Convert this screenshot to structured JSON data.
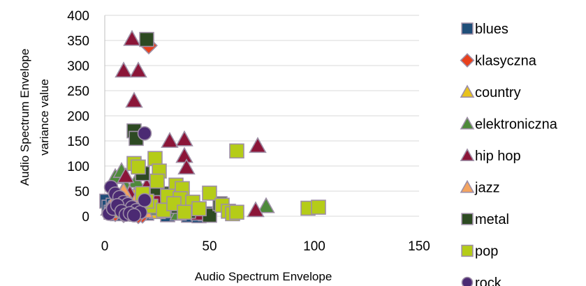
{
  "chart_data": {
    "type": "scatter",
    "title": "",
    "xlabel": "Audio Spectrum Envelope",
    "ylabel_lines": [
      "Audio Spectrum Envelope",
      "variance value"
    ],
    "xlim": [
      0,
      150
    ],
    "ylim": [
      0,
      400
    ],
    "x_ticks": [
      "0",
      "50",
      "100",
      "150"
    ],
    "y_ticks": [
      "0",
      "50",
      "100",
      "150",
      "200",
      "250",
      "300",
      "350",
      "400"
    ],
    "grid": "horizontal",
    "legend_position": "right",
    "series": [
      {
        "name": "blues",
        "marker": "square",
        "color": "#1F4E79",
        "points": [
          [
            1,
            30
          ],
          [
            2,
            18
          ],
          [
            3,
            8
          ],
          [
            4,
            22
          ],
          [
            5,
            12
          ],
          [
            6,
            5
          ],
          [
            8,
            14
          ],
          [
            10,
            20
          ],
          [
            12,
            9
          ],
          [
            15,
            4
          ],
          [
            20,
            6
          ],
          [
            25,
            10
          ],
          [
            30,
            3
          ],
          [
            35,
            8
          ],
          [
            40,
            2
          ],
          [
            45,
            1
          ],
          [
            48,
            5
          ]
        ]
      },
      {
        "name": "klasyczna",
        "marker": "diamond",
        "color": "#E8401C",
        "points": [
          [
            3,
            10
          ],
          [
            5,
            6
          ],
          [
            7,
            15
          ],
          [
            9,
            4
          ],
          [
            11,
            12
          ],
          [
            14,
            8
          ],
          [
            18,
            3
          ],
          [
            21,
            340
          ],
          [
            16,
            2
          ]
        ]
      },
      {
        "name": "country",
        "marker": "triangle",
        "color": "#E8C21C",
        "points": [
          [
            2,
            15
          ],
          [
            4,
            25
          ],
          [
            6,
            35
          ],
          [
            8,
            10
          ],
          [
            10,
            30
          ],
          [
            12,
            18
          ],
          [
            14,
            40
          ],
          [
            16,
            22
          ],
          [
            20,
            12
          ],
          [
            25,
            8
          ]
        ]
      },
      {
        "name": "elektroniczna",
        "marker": "triangle",
        "color": "#4E8A3A",
        "points": [
          [
            5,
            78
          ],
          [
            8,
            90
          ],
          [
            10,
            60
          ],
          [
            12,
            45
          ],
          [
            15,
            70
          ],
          [
            18,
            30
          ],
          [
            20,
            55
          ],
          [
            22,
            20
          ],
          [
            25,
            15
          ],
          [
            30,
            10
          ],
          [
            35,
            5
          ],
          [
            40,
            8
          ],
          [
            77,
            20
          ]
        ]
      },
      {
        "name": "hip hop",
        "marker": "triangle",
        "color": "#8B1538",
        "points": [
          [
            13,
            353
          ],
          [
            9,
            290
          ],
          [
            16,
            290
          ],
          [
            14,
            230
          ],
          [
            31,
            150
          ],
          [
            38,
            153
          ],
          [
            38,
            120
          ],
          [
            39,
            97
          ],
          [
            73,
            140
          ],
          [
            72,
            12
          ],
          [
            10,
            80
          ],
          [
            12,
            45
          ],
          [
            20,
            60
          ],
          [
            25,
            35
          ],
          [
            30,
            25
          ],
          [
            35,
            30
          ],
          [
            40,
            10
          ],
          [
            45,
            5
          ]
        ]
      },
      {
        "name": "jazz",
        "marker": "triangle",
        "color": "#F4A460",
        "points": [
          [
            3,
            20
          ],
          [
            6,
            35
          ],
          [
            9,
            50
          ],
          [
            11,
            25
          ],
          [
            13,
            15
          ],
          [
            16,
            40
          ],
          [
            19,
            10
          ]
        ]
      },
      {
        "name": "metal",
        "marker": "square",
        "color": "#2D4A22",
        "points": [
          [
            20,
            352
          ],
          [
            14,
            170
          ],
          [
            15,
            155
          ],
          [
            18,
            85
          ],
          [
            25,
            55
          ],
          [
            30,
            45
          ],
          [
            35,
            20
          ],
          [
            40,
            10
          ],
          [
            50,
            2
          ],
          [
            55,
            25
          ],
          [
            45,
            15
          ]
        ]
      },
      {
        "name": "pop",
        "marker": "square",
        "color": "#B5CC18",
        "points": [
          [
            14,
            105
          ],
          [
            16,
            98
          ],
          [
            24,
            115
          ],
          [
            26,
            90
          ],
          [
            25,
            70
          ],
          [
            34,
            62
          ],
          [
            37,
            55
          ],
          [
            30,
            40
          ],
          [
            36,
            35
          ],
          [
            42,
            28
          ],
          [
            50,
            46
          ],
          [
            56,
            22
          ],
          [
            59,
            10
          ],
          [
            61,
            5
          ],
          [
            63,
            8
          ],
          [
            63,
            130
          ],
          [
            97,
            16
          ],
          [
            102,
            18
          ],
          [
            22,
            20
          ],
          [
            28,
            12
          ],
          [
            33,
            25
          ],
          [
            38,
            8
          ],
          [
            45,
            15
          ],
          [
            20,
            30
          ],
          [
            18,
            45
          ]
        ]
      },
      {
        "name": "rock",
        "marker": "circle",
        "color": "#4B2A73",
        "points": [
          [
            19,
            165
          ],
          [
            3,
            58
          ],
          [
            5,
            45
          ],
          [
            7,
            38
          ],
          [
            9,
            28
          ],
          [
            11,
            24
          ],
          [
            13,
            18
          ],
          [
            15,
            12
          ],
          [
            17,
            8
          ],
          [
            19,
            32
          ],
          [
            2,
            5
          ],
          [
            4,
            15
          ],
          [
            6,
            22
          ],
          [
            8,
            10
          ],
          [
            10,
            3
          ],
          [
            12,
            6
          ],
          [
            14,
            2
          ]
        ]
      }
    ]
  }
}
